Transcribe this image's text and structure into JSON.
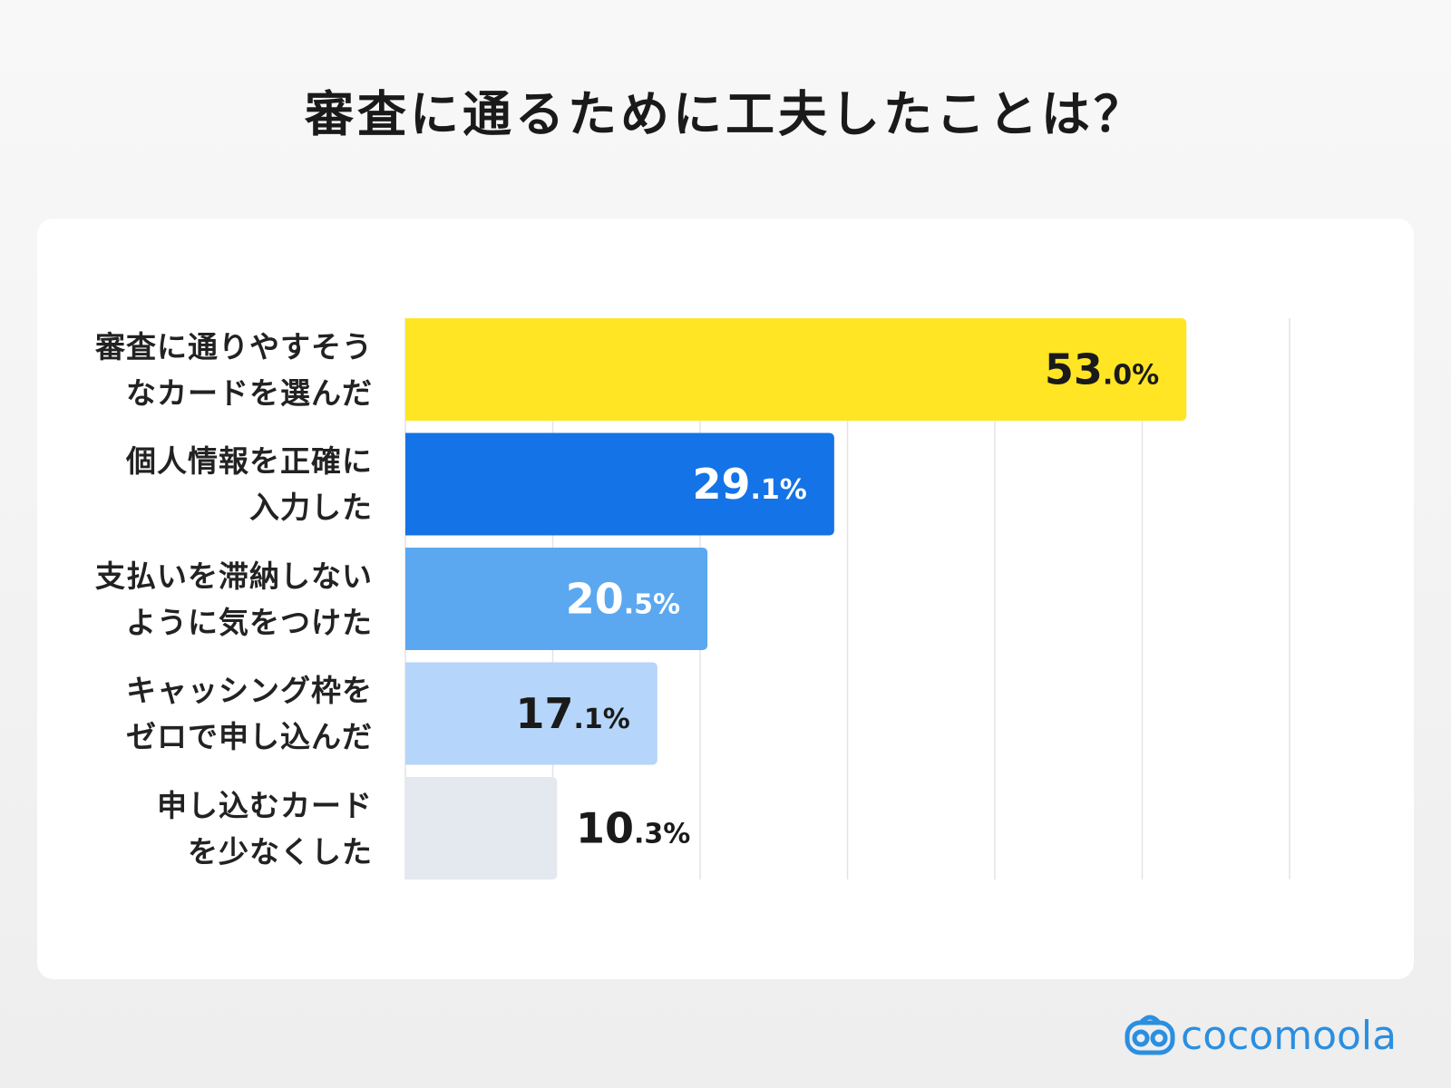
{
  "chart_data": {
    "type": "bar",
    "orientation": "horizontal",
    "title": "審査に通るために工夫したことは？",
    "categories": [
      "審査に通りやすそう\nなカードを選んだ",
      "個人情報を正確に\n入力した",
      "支払いを滞納しない\nように気をつけた",
      "キャッシング枠を\nゼロで申し込んだ",
      "申し込むカード\nを少なくした"
    ],
    "values": [
      53.0,
      29.1,
      20.5,
      17.1,
      10.3
    ],
    "value_labels": [
      "53.0%",
      "29.1%",
      "20.5%",
      "17.1%",
      "10.3%"
    ],
    "colors": [
      "#ffe524",
      "#1473e6",
      "#5ba8f0",
      "#b5d5fa",
      "#e4e8ef"
    ],
    "xlim": [
      0,
      60
    ],
    "xticks": [
      0,
      10,
      20,
      30,
      40,
      50,
      60
    ],
    "grid": true
  },
  "brand": "cocomoola"
}
